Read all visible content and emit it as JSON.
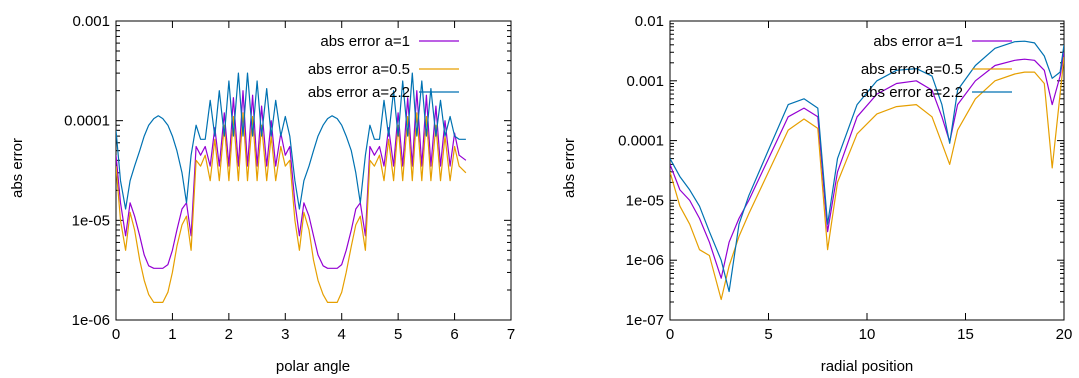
{
  "chart_data": [
    {
      "type": "line",
      "xlabel": "polar angle",
      "ylabel": "abs error",
      "xlim": [
        0,
        7
      ],
      "ylim": [
        1e-06,
        0.001
      ],
      "yscale": "log",
      "xticks": [
        0,
        1,
        2,
        3,
        4,
        5,
        6,
        7
      ],
      "xtick_labels": [
        "0",
        "1",
        "2",
        "3",
        "4",
        "5",
        "6",
        "7"
      ],
      "yticks": [
        1e-06,
        1e-05,
        0.0001,
        0.001
      ],
      "ytick_labels": [
        "1e-06",
        "1e-05",
        "0.0001",
        "0.001"
      ],
      "legend_position": "top-right",
      "series": [
        {
          "name": "abs error a=1",
          "color": "#9400d3",
          "x": [
            0.0,
            0.08,
            0.17,
            0.25,
            0.33,
            0.42,
            0.5,
            0.58,
            0.67,
            0.75,
            0.83,
            0.92,
            1.0,
            1.08,
            1.17,
            1.25,
            1.33,
            1.42,
            1.5,
            1.58,
            1.67,
            1.75,
            1.83,
            1.92,
            2.0,
            2.08,
            2.17,
            2.25,
            2.33,
            2.42,
            2.5,
            2.58,
            2.67,
            2.75,
            2.83,
            2.92,
            3.0,
            3.08,
            3.17,
            3.25,
            3.33,
            3.42,
            3.5,
            3.58,
            3.67,
            3.75,
            3.83,
            3.92,
            4.0,
            4.08,
            4.17,
            4.25,
            4.33,
            4.42,
            4.5,
            4.58,
            4.67,
            4.75,
            4.83,
            4.92,
            5.0,
            5.08,
            5.17,
            5.25,
            5.33,
            5.42,
            5.5,
            5.58,
            5.67,
            5.75,
            5.83,
            5.92,
            6.0,
            6.08,
            6.2
          ],
          "y": [
            4.5e-05,
            1.5e-05,
            7e-06,
            1.5e-05,
            1.1e-05,
            7e-06,
            4.5e-06,
            3.5e-06,
            3.3e-06,
            3.3e-06,
            3.3e-06,
            3.6e-06,
            5e-06,
            8e-06,
            1.3e-05,
            1.5e-05,
            7e-06,
            5.5e-05,
            4.5e-05,
            5.5e-05,
            3.5e-05,
            8.5e-05,
            3.5e-05,
            0.00012,
            3.5e-05,
            0.00017,
            3.5e-05,
            0.0002,
            3.5e-05,
            0.00018,
            3.5e-05,
            0.00014,
            3.5e-05,
            0.0001,
            3.5e-05,
            7.5e-05,
            4.5e-05,
            5.5e-05,
            1.5e-05,
            7e-06,
            1.5e-05,
            1.1e-05,
            7e-06,
            4.5e-06,
            3.5e-06,
            3.3e-06,
            3.3e-06,
            3.3e-06,
            3.6e-06,
            5e-06,
            8e-06,
            1.3e-05,
            1.5e-05,
            7e-06,
            5.5e-05,
            4.5e-05,
            5.5e-05,
            3.5e-05,
            8.5e-05,
            3.5e-05,
            0.00012,
            3.5e-05,
            0.00017,
            3.5e-05,
            0.0002,
            3.5e-05,
            0.00018,
            3.5e-05,
            0.00014,
            3.5e-05,
            0.0001,
            3.5e-05,
            7.5e-05,
            4.5e-05,
            4e-05
          ]
        },
        {
          "name": "abs error a=0.5",
          "color": "#e69f00",
          "x": [
            0.0,
            0.08,
            0.17,
            0.25,
            0.33,
            0.42,
            0.5,
            0.58,
            0.67,
            0.75,
            0.83,
            0.92,
            1.0,
            1.08,
            1.17,
            1.25,
            1.33,
            1.42,
            1.5,
            1.58,
            1.67,
            1.75,
            1.83,
            1.92,
            2.0,
            2.08,
            2.17,
            2.25,
            2.33,
            2.42,
            2.5,
            2.58,
            2.67,
            2.75,
            2.83,
            2.92,
            3.0,
            3.08,
            3.17,
            3.25,
            3.33,
            3.42,
            3.5,
            3.58,
            3.67,
            3.75,
            3.83,
            3.92,
            4.0,
            4.08,
            4.17,
            4.25,
            4.33,
            4.42,
            4.5,
            4.58,
            4.67,
            4.75,
            4.83,
            4.92,
            5.0,
            5.08,
            5.17,
            5.25,
            5.33,
            5.42,
            5.5,
            5.58,
            5.67,
            5.75,
            5.83,
            5.92,
            6.0,
            6.08,
            6.2
          ],
          "y": [
            3.5e-05,
            1e-05,
            5e-06,
            1.2e-05,
            8e-06,
            4e-06,
            2.5e-06,
            1.8e-06,
            1.5e-06,
            1.5e-06,
            1.5e-06,
            1.9e-06,
            3e-06,
            5.5e-06,
            9e-06,
            1.1e-05,
            5e-06,
            4e-05,
            3.5e-05,
            4.5e-05,
            2.5e-05,
            6.5e-05,
            2.5e-05,
            9e-05,
            2.5e-05,
            0.00011,
            2.5e-05,
            0.00012,
            2.5e-05,
            0.00011,
            2.5e-05,
            9e-05,
            2.5e-05,
            7e-05,
            2.5e-05,
            5.5e-05,
            3.5e-05,
            4e-05,
            1e-05,
            5e-06,
            1.2e-05,
            8e-06,
            4e-06,
            2.5e-06,
            1.8e-06,
            1.5e-06,
            1.5e-06,
            1.5e-06,
            1.9e-06,
            3e-06,
            5.5e-06,
            9e-06,
            1.1e-05,
            5e-06,
            4e-05,
            3.5e-05,
            4.5e-05,
            2.5e-05,
            6.5e-05,
            2.5e-05,
            9e-05,
            2.5e-05,
            0.00011,
            2.5e-05,
            0.00012,
            2.5e-05,
            0.00011,
            2.5e-05,
            9e-05,
            2.5e-05,
            7e-05,
            2.5e-05,
            5.5e-05,
            3.5e-05,
            3e-05
          ]
        },
        {
          "name": "abs error a=2.2",
          "color": "#0072b2",
          "x": [
            0.0,
            0.08,
            0.17,
            0.25,
            0.33,
            0.42,
            0.5,
            0.58,
            0.67,
            0.75,
            0.83,
            0.92,
            1.0,
            1.08,
            1.17,
            1.25,
            1.33,
            1.42,
            1.5,
            1.58,
            1.67,
            1.75,
            1.83,
            1.92,
            2.0,
            2.08,
            2.17,
            2.25,
            2.33,
            2.42,
            2.5,
            2.58,
            2.67,
            2.75,
            2.83,
            2.92,
            3.0,
            3.08,
            3.17,
            3.25,
            3.33,
            3.42,
            3.5,
            3.58,
            3.67,
            3.75,
            3.83,
            3.92,
            4.0,
            4.08,
            4.17,
            4.25,
            4.33,
            4.42,
            4.5,
            4.58,
            4.67,
            4.75,
            4.83,
            4.92,
            5.0,
            5.08,
            5.17,
            5.25,
            5.33,
            5.42,
            5.5,
            5.58,
            5.67,
            5.75,
            5.83,
            5.92,
            6.0,
            6.08,
            6.2
          ],
          "y": [
            8e-05,
            2.5e-05,
            1.3e-05,
            2.5e-05,
            3.5e-05,
            5e-05,
            7e-05,
            9e-05,
            0.000105,
            0.000112,
            0.000105,
            9e-05,
            7e-05,
            5e-05,
            3e-05,
            1.5e-05,
            4.5e-05,
            9e-05,
            6.5e-05,
            6.5e-05,
            0.00016,
            7e-05,
            0.0002,
            7e-05,
            0.00025,
            7e-05,
            0.0003,
            7e-05,
            0.0003,
            7e-05,
            0.00025,
            7e-05,
            0.00021,
            7e-05,
            0.00016,
            7e-05,
            0.00011,
            7e-05,
            2.5e-05,
            1.3e-05,
            2.5e-05,
            3.5e-05,
            5e-05,
            7e-05,
            9e-05,
            0.000105,
            0.000112,
            0.000105,
            9e-05,
            7e-05,
            5e-05,
            3e-05,
            1.5e-05,
            4.5e-05,
            9e-05,
            6.5e-05,
            6.5e-05,
            0.00016,
            7e-05,
            0.0002,
            7e-05,
            0.00025,
            7e-05,
            0.0003,
            7e-05,
            0.00025,
            7e-05,
            0.00021,
            7e-05,
            0.00016,
            7e-05,
            0.00011,
            7e-05,
            6.5e-05,
            6.5e-05
          ]
        }
      ]
    },
    {
      "type": "line",
      "xlabel": "radial position",
      "ylabel": "abs error",
      "xlim": [
        0,
        20
      ],
      "ylim": [
        1e-07,
        0.01
      ],
      "yscale": "log",
      "xticks": [
        0,
        5,
        10,
        15,
        20
      ],
      "xtick_labels": [
        "0",
        "5",
        "10",
        "15",
        "20"
      ],
      "yticks": [
        1e-07,
        1e-06,
        1e-05,
        0.0001,
        0.001,
        0.01
      ],
      "ytick_labels": [
        "1e-07",
        "1e-06",
        "1e-05",
        "0.0001",
        "0.001",
        "0.01"
      ],
      "legend_position": "top-right",
      "series": [
        {
          "name": "abs error a=1",
          "color": "#9400d3",
          "x": [
            0,
            0.5,
            1,
            1.5,
            2,
            2.6,
            3,
            3.5,
            4,
            5,
            6,
            6.8,
            7.5,
            8,
            8.5,
            9.5,
            10.5,
            11.5,
            12.5,
            13.3,
            13.8,
            14.2,
            14.6,
            15.5,
            16.5,
            17.5,
            18,
            18.5,
            19,
            19.4,
            19.8,
            20
          ],
          "y": [
            4e-05,
            1.5e-05,
            1e-05,
            5e-06,
            2e-06,
            5e-07,
            2e-06,
            5e-06,
            1e-05,
            5e-05,
            0.00025,
            0.00035,
            0.00025,
            3e-06,
            3e-05,
            0.00025,
            0.0006,
            0.0009,
            0.001,
            0.0007,
            0.00025,
            9.5e-05,
            0.0004,
            0.001,
            0.0018,
            0.0022,
            0.0023,
            0.0022,
            0.0015,
            0.0004,
            0.0012,
            0.003
          ]
        },
        {
          "name": "abs error a=0.5",
          "color": "#e69f00",
          "x": [
            0,
            0.5,
            1,
            1.5,
            2,
            2.6,
            3,
            3.5,
            4,
            5,
            6,
            6.8,
            7.5,
            8,
            8.5,
            9.5,
            10.5,
            11.5,
            12.5,
            13.3,
            13.8,
            14.2,
            14.6,
            15.5,
            16.5,
            17.5,
            18,
            18.5,
            19,
            19.4,
            19.8,
            20
          ],
          "y": [
            3e-05,
            8e-06,
            4e-06,
            1.5e-06,
            1.2e-06,
            2.2e-07,
            8e-07,
            2.5e-06,
            6e-06,
            3e-05,
            0.00015,
            0.00023,
            0.00016,
            1.5e-06,
            2e-05,
            0.00013,
            0.00028,
            0.00037,
            0.0004,
            0.00025,
            9e-05,
            4e-05,
            0.00015,
            0.0005,
            0.001,
            0.0013,
            0.0014,
            0.0014,
            0.0009,
            3.5e-05,
            0.0006,
            0.0025
          ]
        },
        {
          "name": "abs error a=2.2",
          "color": "#0072b2",
          "x": [
            0,
            0.5,
            1,
            1.5,
            2,
            2.6,
            3,
            3.5,
            4,
            5,
            6,
            6.8,
            7.5,
            8,
            8.5,
            9.5,
            10.5,
            11.5,
            12.5,
            13.3,
            13.8,
            14.2,
            14.6,
            15.5,
            16.5,
            17.5,
            18,
            18.5,
            19,
            19.4,
            19.8,
            20
          ],
          "y": [
            5e-05,
            2.5e-05,
            1.5e-05,
            8e-06,
            3e-06,
            1e-06,
            3e-07,
            4e-06,
            1.2e-05,
            7e-05,
            0.0004,
            0.0005,
            0.00035,
            4e-06,
            5e-05,
            0.0004,
            0.001,
            0.0015,
            0.0016,
            0.0012,
            0.0004,
            9e-05,
            0.0007,
            0.0018,
            0.0035,
            0.0045,
            0.0046,
            0.0043,
            0.0026,
            0.0011,
            0.0014,
            0.004
          ]
        }
      ]
    }
  ]
}
